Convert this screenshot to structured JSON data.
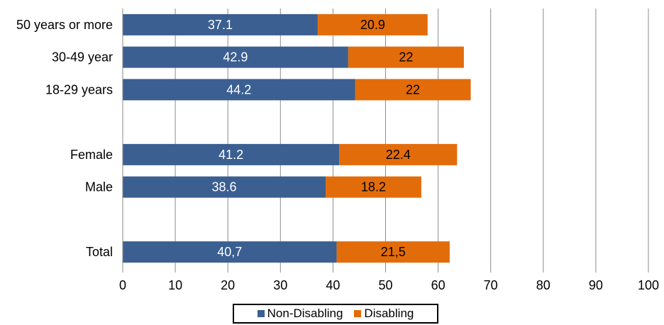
{
  "chart_data": {
    "type": "bar",
    "orientation": "horizontal",
    "stacked": true,
    "categories": [
      "50 years or more",
      "30-49 year",
      "18-29 years",
      "",
      "Female",
      "Male",
      "",
      "Total"
    ],
    "series": [
      {
        "name": "Non-Disabling",
        "color": "#3b5f91",
        "values": [
          37.1,
          42.9,
          44.2,
          null,
          41.2,
          38.6,
          null,
          40.7
        ],
        "labels": [
          "37.1",
          "42.9",
          "44.2",
          "",
          "41.2",
          "38.6",
          "",
          "40,7"
        ]
      },
      {
        "name": "Disabling",
        "color": "#e36c0a",
        "values": [
          20.9,
          22,
          22,
          null,
          22.4,
          18.2,
          null,
          21.5
        ],
        "labels": [
          "20.9",
          "22",
          "22",
          "",
          "22.4",
          "18.2",
          "",
          "21,5"
        ]
      }
    ],
    "xlim": [
      0,
      100
    ],
    "xticks": [
      0,
      10,
      20,
      30,
      40,
      50,
      60,
      70,
      80,
      90,
      100
    ],
    "grid": true,
    "legend_position": "bottom"
  }
}
